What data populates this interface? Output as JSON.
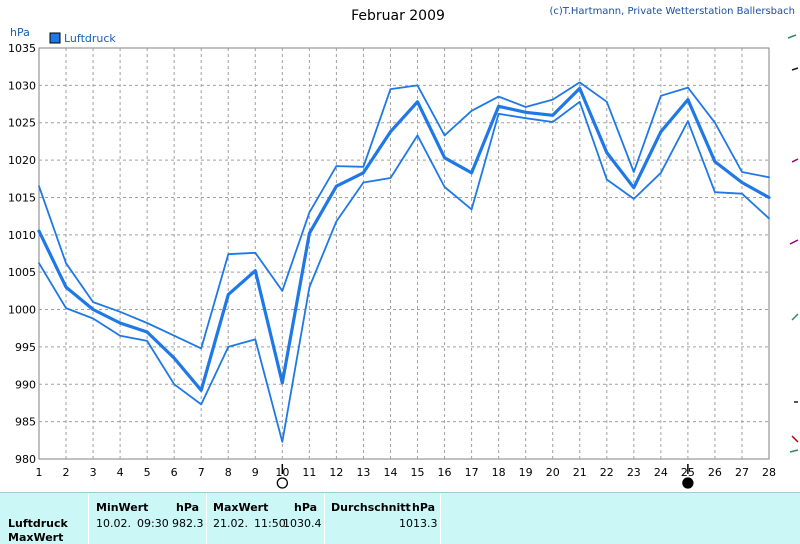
{
  "title": "Februar 2009",
  "copyright": "(c)T.Hartmann, Private Wetterstation Ballersbach",
  "unit_label": "hPa",
  "legend": {
    "label": "Luftdruck",
    "color": "#1e78e6"
  },
  "chart_data": {
    "type": "line",
    "title": "Februar 2009",
    "ylabel": "hPa",
    "xlabel": "",
    "x": [
      1,
      2,
      3,
      4,
      5,
      6,
      7,
      8,
      9,
      10,
      11,
      12,
      13,
      14,
      15,
      16,
      17,
      18,
      19,
      20,
      21,
      22,
      23,
      24,
      25,
      26,
      27,
      28
    ],
    "ylim": [
      980,
      1035
    ],
    "yticks": [
      980,
      985,
      990,
      995,
      1000,
      1005,
      1010,
      1015,
      1020,
      1025,
      1030,
      1035
    ],
    "grid": true,
    "legend_position": "top-left",
    "series": [
      {
        "name": "Luftdruck",
        "role": "mean",
        "values": [
          1010.5,
          1003,
          1000,
          998.2,
          997,
          993.5,
          989.2,
          1002,
          1005.2,
          990.2,
          1010.2,
          1016.5,
          1018.3,
          1023.8,
          1027.8,
          1020.3,
          1018.3,
          1027.2,
          1026.4,
          1026,
          1029.6,
          1021,
          1016.3,
          1023.8,
          1028.1,
          1019.8,
          1017,
          1015
        ]
      },
      {
        "role": "max",
        "values": [
          1016.5,
          1006.2,
          1001,
          999.7,
          998.2,
          996.5,
          994.8,
          1007.4,
          1007.6,
          1002.5,
          1013,
          1019.2,
          1019.1,
          1029.5,
          1030,
          1023.3,
          1026.6,
          1028.5,
          1027.1,
          1028.1,
          1030.4,
          1027.8,
          1018.4,
          1028.6,
          1029.7,
          1025,
          1018.4,
          1017.7
        ]
      },
      {
        "role": "min",
        "values": [
          1006.2,
          1000.2,
          998.8,
          996.5,
          995.8,
          990,
          987.3,
          995,
          996,
          982.3,
          1003,
          1011.8,
          1017,
          1017.6,
          1023.3,
          1016.4,
          1013.4,
          1026.2,
          1025.6,
          1025.1,
          1027.8,
          1017.4,
          1014.8,
          1018.3,
          1025.2,
          1015.7,
          1015.5,
          1012.2
        ]
      }
    ],
    "moon_phases": [
      {
        "day": 10,
        "phase": "full-moon-symbol"
      },
      {
        "day": 25,
        "phase": "new-moon-symbol"
      }
    ]
  },
  "stats": {
    "row_label": "Luftdruck",
    "row_label_2": "MaxWert",
    "min": {
      "header": "MinWert",
      "unit": "hPa",
      "date": "10.02.",
      "time": "09:30",
      "value": "982.3"
    },
    "max": {
      "header": "MaxWert",
      "unit": "hPa",
      "date": "21.02.",
      "time": "11:50",
      "value": "1030.4"
    },
    "avg": {
      "header": "Durchschnitt",
      "unit": "hPa",
      "value": "1013.3"
    }
  }
}
